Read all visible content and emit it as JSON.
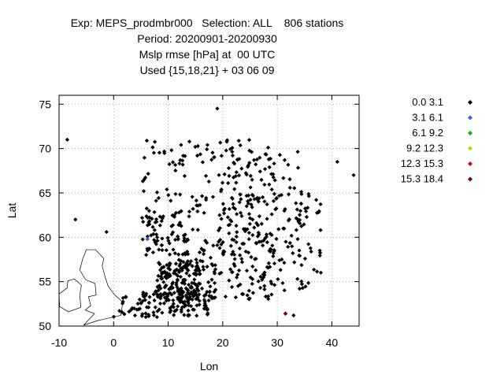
{
  "title_lines": [
    "Exp: MEPS_prodmbr000   Selection: ALL    806 stations",
    "Period: 20200901-20200930",
    "Mslp rmse [hPa] at  00 UTC",
    "Used {15,18,21} + 03 06 09"
  ],
  "chart_data": {
    "type": "scatter",
    "xlabel": "Lon",
    "ylabel": "Lat",
    "xlim": [
      -10,
      45
    ],
    "ylim": [
      50,
      76
    ],
    "xticks": [
      -10,
      0,
      10,
      20,
      30,
      40
    ],
    "yticks": [
      50,
      55,
      60,
      65,
      70,
      75
    ],
    "grid": true,
    "legend_position": "right",
    "legend": [
      {
        "label": "0.0 3.1",
        "color": "#000000"
      },
      {
        "label": "3.1 6.1",
        "color": "#3366dd"
      },
      {
        "label": "6.1 9.2",
        "color": "#00bb00"
      },
      {
        "label": "9.2 12.3",
        "color": "#cccc00"
      },
      {
        "label": "12.3 15.3",
        "color": "#ee0000"
      },
      {
        "label": "15.3 18.4",
        "color": "#800000"
      }
    ],
    "highlighted_points": [
      {
        "x": 6.2,
        "y": 59.8,
        "class": 1
      },
      {
        "x": 31.5,
        "y": 51.4,
        "class": 5
      }
    ],
    "station_count": 806,
    "outline_note": "coastline map background"
  }
}
